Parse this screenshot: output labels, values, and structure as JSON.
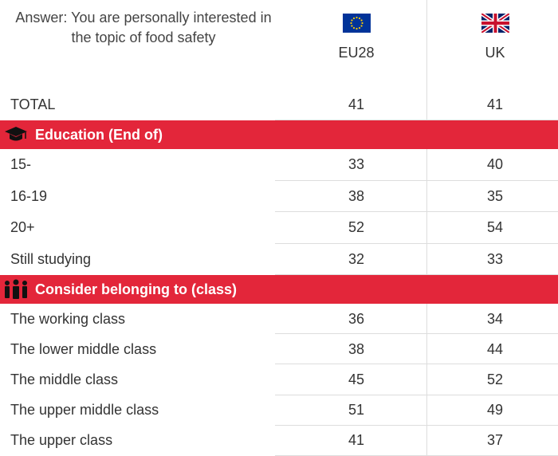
{
  "header": {
    "question": "Answer: You are personally interested in the topic of food safety",
    "columns": [
      "EU28",
      "UK"
    ]
  },
  "rows": [
    {
      "label": "TOTAL",
      "values": [
        41,
        41
      ]
    }
  ],
  "sections": [
    {
      "title": "Education (End of)",
      "rows": [
        {
          "label": "15-",
          "values": [
            33,
            40
          ]
        },
        {
          "label": "16-19",
          "values": [
            38,
            35
          ]
        },
        {
          "label": "20+",
          "values": [
            52,
            54
          ]
        },
        {
          "label": "Still studying",
          "values": [
            32,
            33
          ]
        }
      ]
    },
    {
      "title": "Consider belonging to (class)",
      "rows": [
        {
          "label": "The working class",
          "values": [
            36,
            34
          ]
        },
        {
          "label": "The lower middle class",
          "values": [
            38,
            44
          ]
        },
        {
          "label": "The middle class",
          "values": [
            45,
            52
          ]
        },
        {
          "label": "The upper middle class",
          "values": [
            51,
            49
          ]
        },
        {
          "label": "The upper class",
          "values": [
            41,
            37
          ]
        }
      ]
    }
  ]
}
